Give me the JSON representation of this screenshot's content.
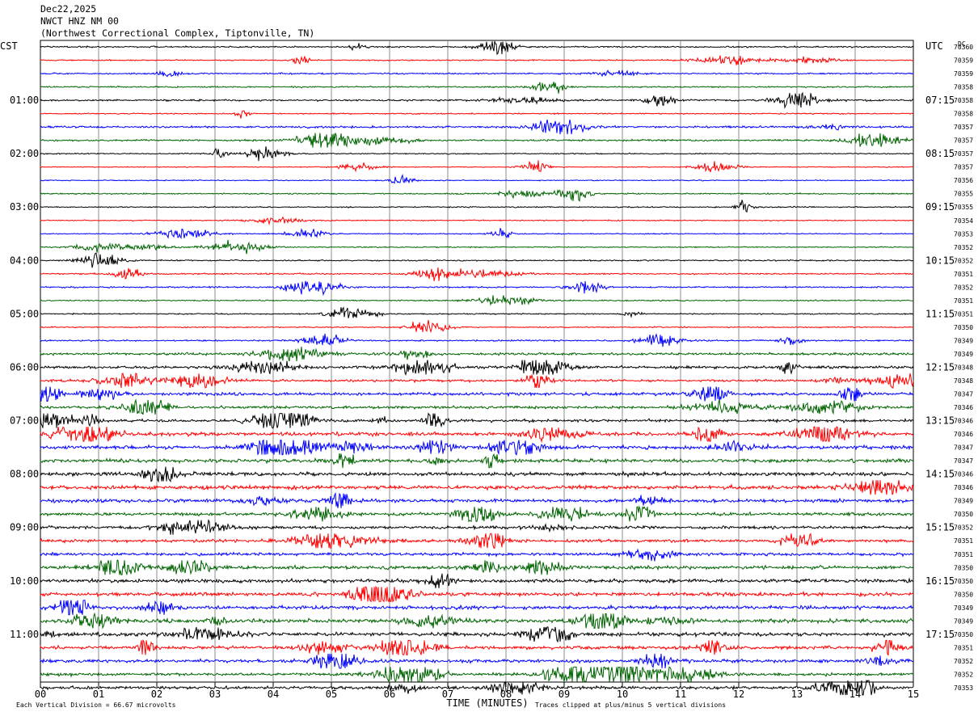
{
  "header": {
    "date": "Dec22,2025",
    "station": "NWCT HNZ NM 00",
    "location": "(Northwest Correctional Complex, Tiptonville, TN)"
  },
  "chart_data": {
    "type": "line",
    "title": "NWCT HNZ NM 00",
    "left_axis_label": "CST",
    "right_axis_label": "UTC",
    "dc_label": "DC",
    "xlabel": "TIME (MINUTES)",
    "x_ticks": [
      "00",
      "01",
      "02",
      "03",
      "04",
      "05",
      "06",
      "07",
      "08",
      "09",
      "10",
      "11",
      "12",
      "13",
      "14",
      "15"
    ],
    "xlim": [
      0,
      15
    ],
    "grid": true,
    "trace_colors": [
      "#000000",
      "#ff0000",
      "#0000ff",
      "#006400"
    ],
    "left_time_labels": [
      "01:00",
      "02:00",
      "03:00",
      "04:00",
      "05:00",
      "06:00",
      "07:00",
      "08:00",
      "09:00",
      "10:00",
      "11:00"
    ],
    "right_time_labels": [
      "07:15",
      "08:15",
      "09:15",
      "10:15",
      "11:15",
      "12:15",
      "13:15",
      "14:15",
      "15:15",
      "16:15",
      "17:15"
    ],
    "hour_label_every_traces": 4,
    "first_hour_label_trace": 4,
    "dc_offsets": [
      70360,
      70359,
      70359,
      70358,
      70358,
      70358,
      70357,
      70357,
      70357,
      70357,
      70356,
      70355,
      70355,
      70354,
      70353,
      70352,
      70352,
      70351,
      70352,
      70351,
      70351,
      70350,
      70349,
      70349,
      70348,
      70348,
      70347,
      70346,
      70346,
      70346,
      70347,
      70347,
      70346,
      70346,
      70349,
      70350,
      70352,
      70351,
      70351,
      70350,
      70350,
      70350,
      70349,
      70349,
      70350,
      70351,
      70352,
      70352,
      70353
    ],
    "trace_activity": [
      1.0,
      0.8,
      1.0,
      1.0,
      1.2,
      0.8,
      1.4,
      1.2,
      0.8,
      0.6,
      0.7,
      0.9,
      0.8,
      0.7,
      0.7,
      0.7,
      0.9,
      1.0,
      1.0,
      0.9,
      0.8,
      0.8,
      1.0,
      1.6,
      1.8,
      1.6,
      2.0,
      1.8,
      1.9,
      2.4,
      2.4,
      2.4,
      2.6,
      2.6,
      2.4,
      2.0,
      2.0,
      2.0,
      2.0,
      2.4,
      2.4,
      2.5,
      2.4,
      2.6,
      2.5,
      2.2,
      2.2,
      2.0,
      2.0
    ],
    "footer_left": "Each Vertical Division =   66.67 microvolts",
    "footer_right": "Traces clipped at plus/minus 5 vertical divisions"
  }
}
